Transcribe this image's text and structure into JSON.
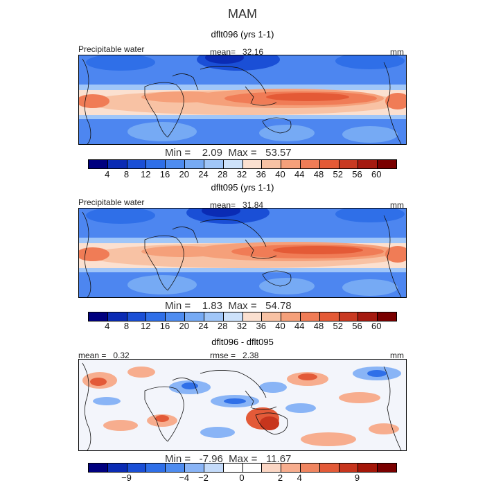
{
  "season": "MAM",
  "panels": [
    {
      "title": "dflt096 (yrs 1-1)",
      "field": "Precipitable water",
      "mean_label": "mean=",
      "mean_value": "32.16",
      "units": "mm",
      "min_label": "Min =",
      "min_value": "2.09",
      "max_label": "Max =",
      "max_value": "53.57",
      "colorbar_ticks": [
        "4",
        "8",
        "12",
        "16",
        "20",
        "24",
        "28",
        "32",
        "36",
        "40",
        "44",
        "48",
        "52",
        "56",
        "60"
      ],
      "colorbar_colors": [
        "#00007f",
        "#0a2bb4",
        "#1a4fd6",
        "#2f6fe8",
        "#4e8cf0",
        "#76aaf4",
        "#a0c6f8",
        "#cde2fb",
        "#fbe0d0",
        "#f8c2a4",
        "#f5a07a",
        "#f07c56",
        "#e45a36",
        "#c93a22",
        "#a51a10",
        "#7a0000"
      ],
      "background_color": "#4d86f0"
    },
    {
      "title": "dflt095 (yrs 1-1)",
      "field": "Precipitable water",
      "mean_label": "mean=",
      "mean_value": "31.84",
      "units": "mm",
      "min_label": "Min =",
      "min_value": "1.83",
      "max_label": "Max =",
      "max_value": "54.78",
      "colorbar_ticks": [
        "4",
        "8",
        "12",
        "16",
        "20",
        "24",
        "28",
        "32",
        "36",
        "40",
        "44",
        "48",
        "52",
        "56",
        "60"
      ],
      "colorbar_colors": [
        "#00007f",
        "#0a2bb4",
        "#1a4fd6",
        "#2f6fe8",
        "#4e8cf0",
        "#76aaf4",
        "#a0c6f8",
        "#cde2fb",
        "#fbe0d0",
        "#f8c2a4",
        "#f5a07a",
        "#f07c56",
        "#e45a36",
        "#c93a22",
        "#a51a10",
        "#7a0000"
      ],
      "background_color": "#4d86f0"
    },
    {
      "title": "dflt096 - dflt095",
      "mean_label": "mean =",
      "mean_value": "0.32",
      "rmse_label": "rmse =",
      "rmse_value": "2.38",
      "units": "mm",
      "min_label": "Min =",
      "min_value": "-7.96",
      "max_label": "Max =",
      "max_value": "11.67",
      "colorbar_ticks": [
        "−9",
        "−4",
        "−2",
        "0",
        "2",
        "4",
        "9"
      ],
      "colorbar_colors": [
        "#00007f",
        "#0a2bb4",
        "#1a4fd6",
        "#2f6fe8",
        "#4e8cf0",
        "#89b4f6",
        "#c4dbfa",
        "#ffffff",
        "#ffffff",
        "#fbd6c4",
        "#f7ad8e",
        "#f08560",
        "#e35a38",
        "#c7351d",
        "#a41608",
        "#7a0000"
      ],
      "background_color": "#f3f5fb"
    }
  ]
}
